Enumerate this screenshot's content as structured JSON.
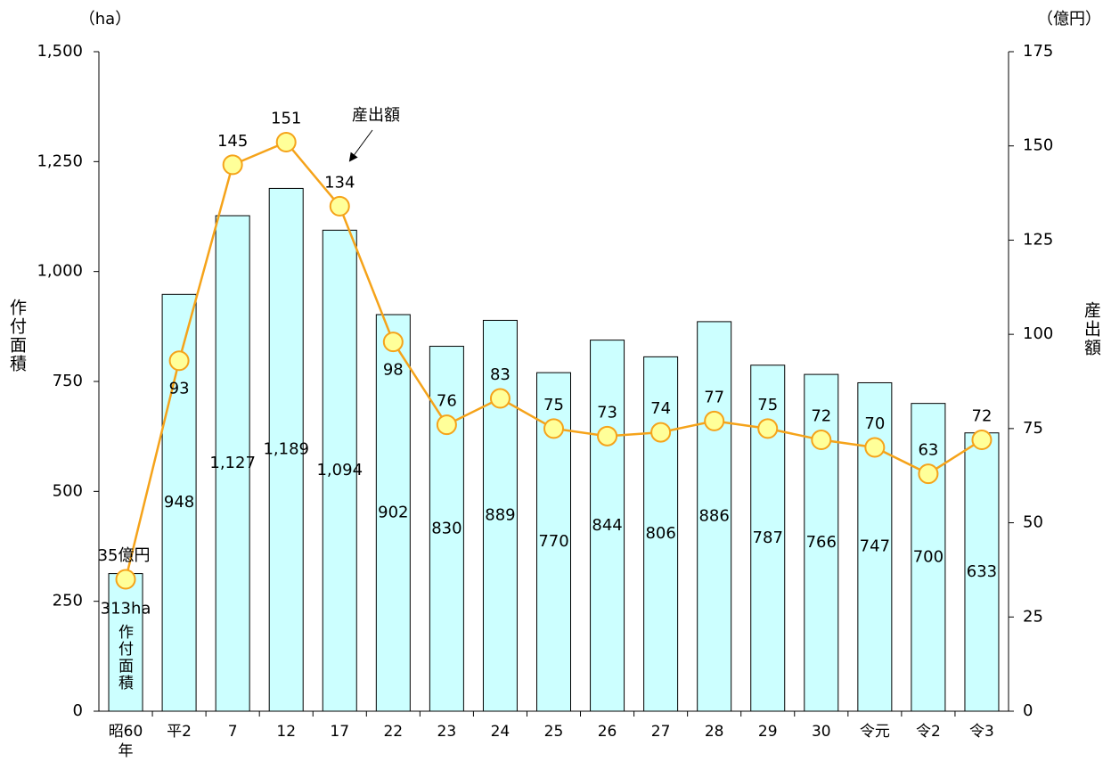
{
  "chart_data": {
    "type": "bar_line",
    "y_unit": "（ha）",
    "y2_unit": "（億円）",
    "y_label": "作付面積",
    "y2_label": "産出額",
    "annotations": [
      "産出額",
      "作付面積"
    ],
    "categories": [
      "昭60年",
      "平2",
      "7",
      "12",
      "17",
      "22",
      "23",
      "24",
      "25",
      "26",
      "27",
      "28",
      "29",
      "30",
      "令元",
      "令2",
      "令3"
    ],
    "series": [
      {
        "name": "作付面積",
        "type": "bar",
        "color": "#ccffff",
        "values": [
          313,
          948,
          1127,
          1189,
          1094,
          902,
          830,
          889,
          770,
          844,
          806,
          886,
          787,
          766,
          747,
          700,
          633
        ],
        "value_labels": [
          "313ha",
          "948",
          "1,127",
          "1,189",
          "1,094",
          "902",
          "830",
          "889",
          "770",
          "844",
          "806",
          "886",
          "787",
          "766",
          "747",
          "700",
          "633"
        ]
      },
      {
        "name": "産出額",
        "type": "line",
        "axis": "y2",
        "color": "#f5a31a",
        "values": [
          35,
          93,
          145,
          151,
          134,
          98,
          76,
          83,
          75,
          73,
          74,
          77,
          75,
          72,
          70,
          63,
          72
        ],
        "value_labels": [
          "35億円",
          "93",
          "145",
          "151",
          "134",
          "98",
          "76",
          "83",
          "75",
          "73",
          "74",
          "77",
          "75",
          "72",
          "70",
          "63",
          "72"
        ]
      }
    ],
    "ylim": [
      0,
      1500
    ],
    "yticks": [
      0,
      250,
      500,
      750,
      {
        "value": 1000,
        "label": "1,000"
      },
      {
        "value": 1250,
        "label": "1,250"
      },
      {
        "value": 1500,
        "label": "1,500"
      }
    ],
    "y2lim": [
      0,
      175
    ],
    "y2ticks": [
      0,
      25,
      50,
      75,
      100,
      125,
      150,
      175
    ]
  }
}
